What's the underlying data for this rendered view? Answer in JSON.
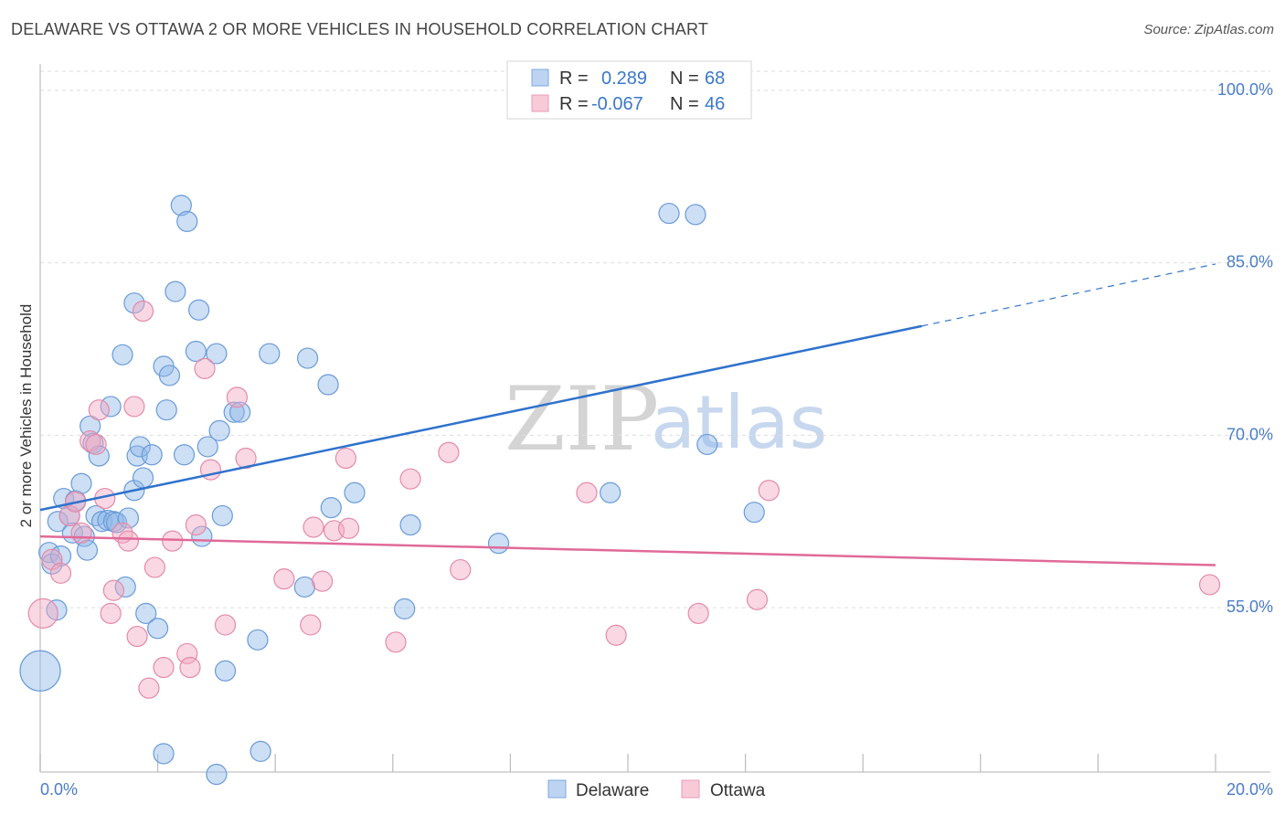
{
  "header": {
    "title": "DELAWARE VS OTTAWA 2 OR MORE VEHICLES IN HOUSEHOLD CORRELATION CHART",
    "source": "Source: ZipAtlas.com"
  },
  "watermark": {
    "zip": "ZIP",
    "atlas": "atlas"
  },
  "legend": {
    "r_label": "R =",
    "n_label": "N =",
    "series": [
      {
        "name": "Delaware",
        "r": "0.289",
        "n": "68",
        "color": "#8fb8e8"
      },
      {
        "name": "Ottawa",
        "r": "-0.067",
        "n": "46",
        "color": "#f2a8c0"
      }
    ]
  },
  "chart_data": {
    "type": "scatter",
    "title": "DELAWARE VS OTTAWA 2 OR MORE VEHICLES IN HOUSEHOLD CORRELATION CHART",
    "xlabel": "",
    "ylabel": "2 or more Vehicles in Household",
    "xlim": [
      0,
      20
    ],
    "ylim": [
      40.7,
      102.3
    ],
    "x_tick_labels": [
      "0.0%",
      "20.0%"
    ],
    "y_ticks": [
      55,
      70,
      85,
      100
    ],
    "y_tick_labels": [
      "55.0%",
      "70.0%",
      "85.0%",
      "100.0%"
    ],
    "grid": true,
    "legend_position": "top-center",
    "series": [
      {
        "name": "Delaware",
        "color": "#8fb8e8",
        "edge": "#6a9bd8",
        "trend": {
          "x0": 0,
          "y0": 63.5,
          "x1": 15,
          "y1": 79.5,
          "dash_to_x": 20,
          "dash_to_y": 84.9,
          "color": "#2f72cc"
        },
        "points": [
          [
            0.15,
            59.8
          ],
          [
            0.2,
            58.8
          ],
          [
            0.28,
            54.8
          ],
          [
            0.3,
            62.5
          ],
          [
            0.35,
            59.5
          ],
          [
            0.4,
            64.5
          ],
          [
            0.5,
            63.0
          ],
          [
            0.55,
            61.5
          ],
          [
            0.6,
            64.3
          ],
          [
            0.7,
            65.8
          ],
          [
            0.75,
            61.2
          ],
          [
            0.8,
            60.0
          ],
          [
            0.85,
            70.8
          ],
          [
            0.9,
            69.3
          ],
          [
            1.0,
            68.2
          ],
          [
            0.95,
            63.0
          ],
          [
            1.05,
            62.5
          ],
          [
            1.15,
            62.6
          ],
          [
            1.2,
            72.5
          ],
          [
            1.25,
            62.5
          ],
          [
            1.3,
            62.4
          ],
          [
            1.4,
            77.0
          ],
          [
            1.45,
            56.8
          ],
          [
            1.5,
            62.8
          ],
          [
            1.6,
            81.5
          ],
          [
            1.6,
            65.2
          ],
          [
            1.65,
            68.2
          ],
          [
            1.7,
            69.0
          ],
          [
            1.75,
            66.3
          ],
          [
            1.8,
            54.5
          ],
          [
            1.9,
            68.3
          ],
          [
            2.0,
            53.2
          ],
          [
            2.1,
            76.0
          ],
          [
            2.15,
            72.2
          ],
          [
            2.2,
            75.2
          ],
          [
            2.3,
            82.5
          ],
          [
            2.4,
            90.0
          ],
          [
            2.45,
            68.3
          ],
          [
            2.5,
            88.6
          ],
          [
            2.65,
            77.3
          ],
          [
            2.7,
            80.9
          ],
          [
            2.75,
            61.2
          ],
          [
            2.85,
            69.0
          ],
          [
            3.0,
            77.1
          ],
          [
            3.05,
            70.4
          ],
          [
            3.1,
            63.0
          ],
          [
            3.15,
            49.5
          ],
          [
            3.3,
            72.0
          ],
          [
            3.4,
            72.0
          ],
          [
            3.7,
            52.2
          ],
          [
            3.75,
            42.5
          ],
          [
            3.9,
            77.1
          ],
          [
            3.0,
            40.5
          ],
          [
            4.5,
            56.8
          ],
          [
            4.55,
            76.7
          ],
          [
            4.9,
            74.4
          ],
          [
            4.95,
            63.7
          ],
          [
            5.35,
            65.0
          ],
          [
            6.2,
            54.9
          ],
          [
            6.3,
            62.2
          ],
          [
            7.8,
            60.6
          ],
          [
            2.1,
            42.3
          ],
          [
            9.7,
            65.0
          ],
          [
            10.7,
            89.3
          ],
          [
            11.15,
            89.2
          ],
          [
            11.35,
            69.2
          ],
          [
            12.15,
            63.3
          ],
          [
            0.0,
            49.5
          ]
        ],
        "sizes": [
          11,
          11,
          11,
          11,
          11,
          11,
          11,
          11,
          11,
          11,
          11,
          11,
          11,
          11,
          11,
          11,
          11,
          11,
          11,
          11,
          11,
          11,
          11,
          11,
          11,
          11,
          11,
          11,
          11,
          11,
          11,
          11,
          11,
          11,
          11,
          11,
          11,
          11,
          11,
          11,
          11,
          11,
          11,
          11,
          11,
          11,
          11,
          11,
          11,
          11,
          11,
          11,
          11,
          11,
          11,
          11,
          11,
          11,
          11,
          11,
          11,
          11,
          11,
          11,
          11,
          11,
          11,
          22
        ]
      },
      {
        "name": "Ottawa",
        "color": "#f2a8c0",
        "edge": "#e58aaa",
        "trend": {
          "x0": 0,
          "y0": 61.2,
          "x1": 20,
          "y1": 58.7,
          "color": "#e06a98"
        },
        "points": [
          [
            0.05,
            54.5
          ],
          [
            0.2,
            59.2
          ],
          [
            0.35,
            58.0
          ],
          [
            0.5,
            63.0
          ],
          [
            0.6,
            64.2
          ],
          [
            0.7,
            61.5
          ],
          [
            0.85,
            69.5
          ],
          [
            0.95,
            69.2
          ],
          [
            1.0,
            72.2
          ],
          [
            1.1,
            64.5
          ],
          [
            1.2,
            54.5
          ],
          [
            1.25,
            56.5
          ],
          [
            1.4,
            61.5
          ],
          [
            1.5,
            60.8
          ],
          [
            1.6,
            72.5
          ],
          [
            1.65,
            52.5
          ],
          [
            1.75,
            80.8
          ],
          [
            1.85,
            48.0
          ],
          [
            1.95,
            58.5
          ],
          [
            2.1,
            49.8
          ],
          [
            2.25,
            60.8
          ],
          [
            2.5,
            51.0
          ],
          [
            2.55,
            49.8
          ],
          [
            2.65,
            62.2
          ],
          [
            2.8,
            75.8
          ],
          [
            2.9,
            67.0
          ],
          [
            3.15,
            53.5
          ],
          [
            3.35,
            73.3
          ],
          [
            3.5,
            68.0
          ],
          [
            4.15,
            57.5
          ],
          [
            4.6,
            53.5
          ],
          [
            4.65,
            62.0
          ],
          [
            4.8,
            57.3
          ],
          [
            5.0,
            61.7
          ],
          [
            5.2,
            68.0
          ],
          [
            5.25,
            61.9
          ],
          [
            6.05,
            52.0
          ],
          [
            6.3,
            66.2
          ],
          [
            6.95,
            68.5
          ],
          [
            7.15,
            58.3
          ],
          [
            9.3,
            65.0
          ],
          [
            9.8,
            52.6
          ],
          [
            11.2,
            54.5
          ],
          [
            12.2,
            55.7
          ],
          [
            12.4,
            65.2
          ],
          [
            19.9,
            57.0
          ]
        ],
        "sizes": [
          16,
          11,
          11,
          11,
          11,
          11,
          11,
          11,
          11,
          11,
          11,
          11,
          11,
          11,
          11,
          11,
          11,
          11,
          11,
          11,
          11,
          11,
          11,
          11,
          11,
          11,
          11,
          11,
          11,
          11,
          11,
          11,
          11,
          11,
          11,
          11,
          11,
          11,
          11,
          11,
          11,
          11,
          11,
          11,
          11,
          11
        ]
      }
    ]
  }
}
